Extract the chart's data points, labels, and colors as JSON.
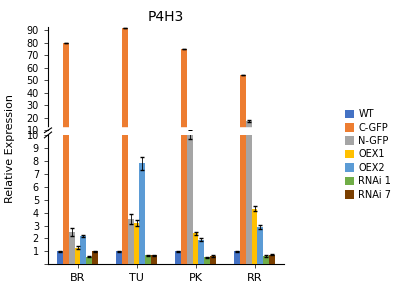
{
  "title": "P4H3",
  "ylabel": "Relative Expression",
  "groups": [
    "BR",
    "TU",
    "PK",
    "RR"
  ],
  "series_labels": [
    "WT",
    "C-GFP",
    "N-GFP",
    "OEX1",
    "OEX2",
    "RNAi 1",
    "RNAi 7"
  ],
  "colors": [
    "#4472C4",
    "#ED7D31",
    "#A5A5A5",
    "#FFC000",
    "#5B9BD5",
    "#70AD47",
    "#7B3F00"
  ],
  "values": {
    "WT": [
      1.0,
      1.0,
      1.0,
      1.0
    ],
    "C-GFP": [
      80.0,
      92.0,
      75.0,
      54.0
    ],
    "N-GFP": [
      2.5,
      3.5,
      10.0,
      17.5
    ],
    "OEX1": [
      1.3,
      3.2,
      2.4,
      4.3
    ],
    "OEX2": [
      2.2,
      7.8,
      1.9,
      2.9
    ],
    "RNAi 1": [
      0.6,
      0.7,
      0.55,
      0.65
    ],
    "RNAi 7": [
      1.0,
      0.7,
      0.65,
      0.75
    ]
  },
  "error_bars": {
    "WT": [
      0.05,
      0.05,
      0.05,
      0.05
    ],
    "C-GFP": [
      0.0,
      0.0,
      0.0,
      0.0
    ],
    "N-GFP": [
      0.3,
      0.4,
      0.3,
      0.5
    ],
    "OEX1": [
      0.1,
      0.2,
      0.1,
      0.2
    ],
    "OEX2": [
      0.1,
      0.5,
      0.1,
      0.15
    ],
    "RNAi 1": [
      0.05,
      0.05,
      0.05,
      0.05
    ],
    "RNAi 7": [
      0.05,
      0.05,
      0.05,
      0.05
    ]
  },
  "background_color": "#FFFFFF"
}
